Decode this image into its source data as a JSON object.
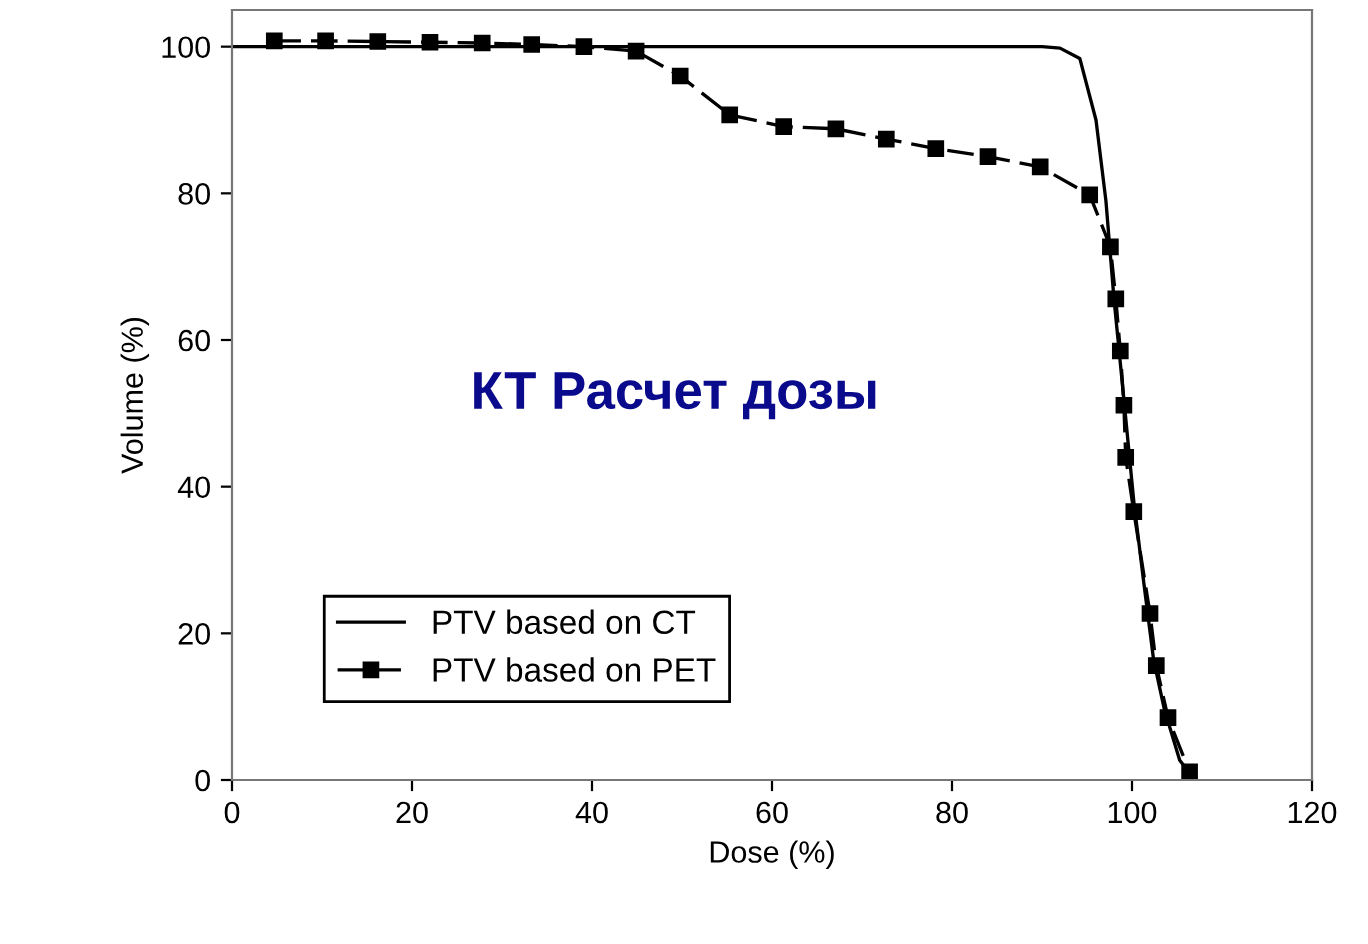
{
  "chart_data": {
    "type": "line",
    "xlabel": "Dose (%)",
    "ylabel": "Volume (%)",
    "annotations": [
      "КТ Расчет дозы"
    ],
    "xlim": [
      0,
      120
    ],
    "ylim": [
      0,
      105
    ],
    "xticks": [
      0,
      20,
      40,
      60,
      80,
      100,
      120
    ],
    "yticks": [
      0,
      20,
      40,
      60,
      80,
      100
    ],
    "grid": false,
    "legend": "bottom left",
    "series": [
      {
        "name": "PTV based on CT",
        "color": "#000000",
        "line_style": "solid",
        "marker": "none",
        "x": [
          0,
          20,
          40,
          60,
          80,
          90,
          92,
          94.2,
          96,
          97.1,
          98,
          99.1,
          100.2,
          101.3,
          102.4,
          103.6,
          105.3,
          106.7
        ],
        "values": [
          100,
          100,
          100,
          100,
          100,
          100,
          99.8,
          98.4,
          90,
          79,
          65.6,
          51.9,
          38,
          27,
          16.4,
          9.6,
          2.7,
          0.5
        ]
      },
      {
        "name": "PTV based on PET",
        "color": "#000000",
        "line_style": "dashed",
        "marker": "square",
        "x": [
          4.7,
          10.4,
          16.2,
          22,
          27.8,
          33.3,
          39.1,
          44.9,
          49.8,
          55.3,
          61.3,
          67.1,
          72.7,
          78.2,
          84,
          89.8,
          95.3,
          97.6,
          98.2,
          98.7,
          99.1,
          99.3,
          100.2,
          102,
          102.7,
          104,
          106.4
        ],
        "values": [
          100.8,
          100.8,
          100.7,
          100.6,
          100.5,
          100.3,
          100,
          99.4,
          96,
          90.7,
          89.1,
          88.8,
          87.4,
          86.1,
          85,
          83.6,
          79.8,
          72.7,
          65.6,
          58.5,
          51.1,
          44,
          36.6,
          22.7,
          15.6,
          8.5,
          1.1
        ]
      }
    ]
  }
}
